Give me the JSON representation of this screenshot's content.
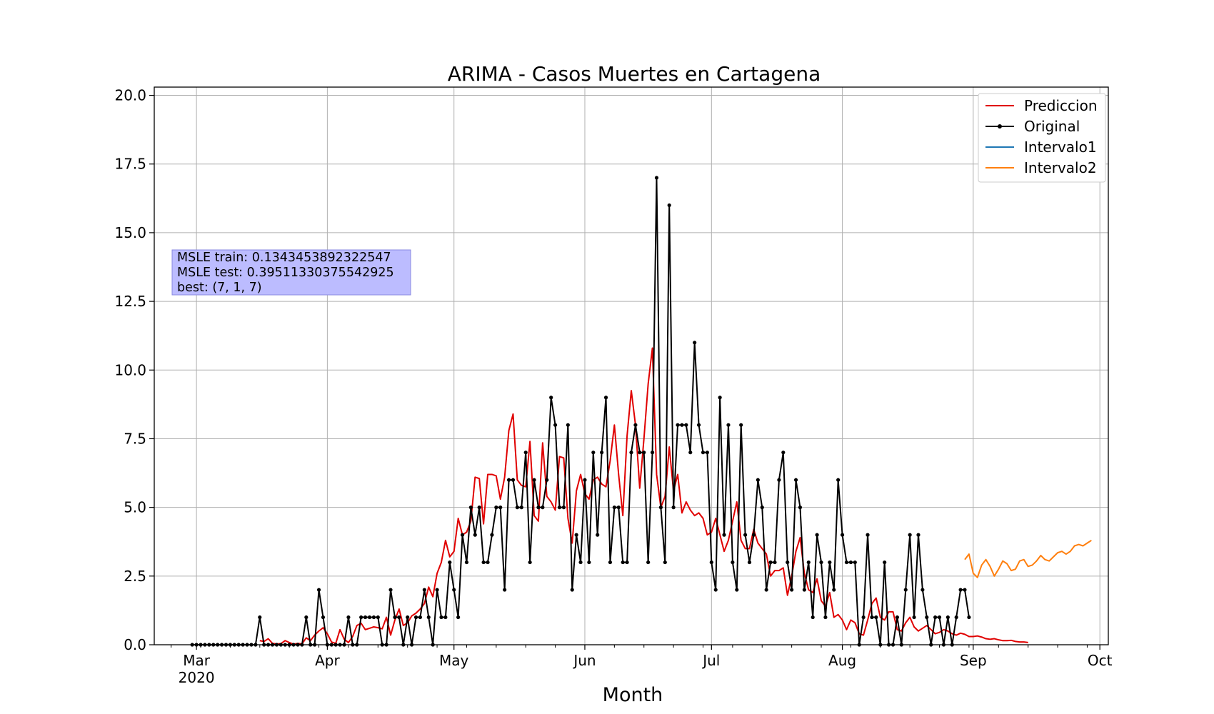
{
  "chart_data": {
    "type": "line",
    "title": "ARIMA - Casos Muertes en Cartagena",
    "xlabel": "Month",
    "ylabel": "",
    "x_start_date": "2020-02-29",
    "xlim": [
      "2020-02-20",
      "2020-10-03"
    ],
    "ylim": [
      0,
      20.3
    ],
    "yticks": [
      "0.0",
      "2.5",
      "5.0",
      "7.5",
      "10.0",
      "12.5",
      "15.0",
      "17.5",
      "20.0"
    ],
    "xticks": [
      {
        "date": "2020-03-01",
        "label": "Mar",
        "sublabel": "2020"
      },
      {
        "date": "2020-04-01",
        "label": "Apr",
        "sublabel": ""
      },
      {
        "date": "2020-05-01",
        "label": "May",
        "sublabel": ""
      },
      {
        "date": "2020-06-01",
        "label": "Jun",
        "sublabel": ""
      },
      {
        "date": "2020-07-01",
        "label": "Jul",
        "sublabel": ""
      },
      {
        "date": "2020-08-01",
        "label": "Aug",
        "sublabel": ""
      },
      {
        "date": "2020-09-01",
        "label": "Sep",
        "sublabel": ""
      },
      {
        "date": "2020-10-01",
        "label": "Oct",
        "sublabel": ""
      }
    ],
    "grid": true,
    "legend_position": "top-right",
    "annotation": {
      "lines": [
        "MSLE train: 0.1343453892322547",
        "MSLE test: 0.39511330375542925",
        "best: (7, 1, 7)"
      ],
      "background": "#bcbcff",
      "border": "#8a8ae0"
    },
    "series": [
      {
        "name": "Prediccion",
        "color": "#e00000",
        "marker": false,
        "start_date": "2020-03-16",
        "values": [
          0.15,
          0.12,
          0.22,
          0.05,
          0.03,
          0.04,
          0.15,
          0.08,
          0.02,
          0.05,
          0.03,
          0.25,
          0.15,
          0.35,
          0.5,
          0.62,
          0.4,
          0.1,
          0.05,
          0.55,
          0.2,
          0.08,
          0.3,
          0.7,
          0.78,
          0.55,
          0.6,
          0.65,
          0.62,
          0.58,
          1.0,
          0.35,
          0.9,
          1.3,
          0.7,
          0.8,
          1.05,
          1.15,
          1.3,
          1.5,
          2.1,
          1.75,
          2.6,
          3.0,
          3.8,
          3.2,
          3.4,
          4.6,
          4.0,
          4.1,
          4.5,
          6.1,
          6.05,
          4.4,
          6.2,
          6.2,
          6.15,
          5.3,
          6.1,
          7.8,
          8.4,
          6.0,
          5.8,
          5.75,
          7.4,
          4.7,
          4.5,
          7.35,
          5.4,
          5.2,
          4.9,
          6.85,
          6.8,
          4.6,
          3.7,
          5.6,
          6.2,
          5.5,
          5.3,
          6.0,
          6.1,
          5.85,
          5.75,
          6.7,
          8.0,
          6.2,
          4.7,
          7.6,
          9.25,
          8.0,
          5.7,
          7.5,
          9.5,
          10.8,
          6.2,
          5.0,
          5.4,
          7.2,
          5.6,
          6.2,
          4.8,
          5.2,
          4.9,
          4.7,
          4.8,
          4.6,
          4.0,
          4.1,
          4.6,
          4.0,
          3.4,
          3.8,
          4.5,
          5.2,
          3.8,
          3.5,
          3.5,
          4.2,
          3.7,
          3.5,
          3.3,
          2.5,
          2.7,
          2.7,
          2.8,
          1.8,
          2.5,
          3.4,
          3.9,
          2.6,
          2.0,
          1.9,
          2.4,
          1.6,
          1.4,
          1.9,
          1.0,
          1.1,
          0.9,
          0.55,
          0.9,
          0.8,
          0.4,
          0.35,
          0.9,
          1.5,
          1.7,
          1.0,
          0.9,
          1.2,
          1.2,
          0.55,
          0.5,
          0.8,
          1.0,
          0.65,
          0.5,
          0.6,
          0.7,
          0.55,
          0.4,
          0.45,
          0.55,
          0.5,
          0.4,
          0.35,
          0.42,
          0.38,
          0.3,
          0.3,
          0.32,
          0.28,
          0.22,
          0.2,
          0.22,
          0.18,
          0.15,
          0.15,
          0.16,
          0.12,
          0.1,
          0.1,
          0.08
        ]
      },
      {
        "name": "Original",
        "color": "#000000",
        "marker": true,
        "start_date": "2020-02-29",
        "values": [
          0,
          0,
          0,
          0,
          0,
          0,
          0,
          0,
          0,
          0,
          0,
          0,
          0,
          0,
          0,
          0,
          1,
          0,
          0,
          0,
          0,
          0,
          0,
          0,
          0,
          0,
          0,
          1,
          0,
          0,
          2,
          1,
          0,
          0,
          0,
          0,
          0,
          1,
          0,
          0,
          1,
          1,
          1,
          1,
          1,
          0,
          0,
          2,
          1,
          1,
          0,
          1,
          0,
          1,
          1,
          2,
          1,
          0,
          2,
          1,
          1,
          3,
          2,
          1,
          4,
          3,
          5,
          4,
          5,
          3,
          3,
          4,
          5,
          5,
          2,
          6,
          6,
          5,
          5,
          7,
          3,
          6,
          5,
          5,
          6,
          9,
          8,
          5,
          5,
          8,
          2,
          4,
          3,
          6,
          3,
          7,
          4,
          7,
          9,
          3,
          5,
          5,
          3,
          3,
          7,
          8,
          7,
          7,
          3,
          7,
          17,
          5,
          3,
          16,
          5,
          8,
          8,
          8,
          7,
          11,
          8,
          7,
          7,
          3,
          2,
          9,
          4,
          8,
          3,
          2,
          8,
          4,
          3,
          4,
          6,
          5,
          2,
          3,
          3,
          6,
          7,
          3,
          2,
          6,
          5,
          2,
          3,
          1,
          4,
          3,
          1,
          3,
          2,
          6,
          4,
          3,
          3,
          3,
          0,
          1,
          4,
          1,
          1,
          0,
          3,
          0,
          0,
          1,
          0,
          2,
          4,
          1,
          4,
          2,
          1,
          0,
          1,
          1,
          0,
          1,
          0,
          1,
          2,
          2,
          1
        ]
      },
      {
        "name": "Intervalo1",
        "color": "#1f77b4",
        "marker": false,
        "start_date": "2020-08-30",
        "values": []
      },
      {
        "name": "Intervalo2",
        "color": "#ff7f0e",
        "marker": false,
        "start_date": "2020-08-30",
        "values": [
          3.1,
          3.3,
          2.6,
          2.45,
          2.9,
          3.1,
          2.85,
          2.5,
          2.75,
          3.05,
          2.95,
          2.7,
          2.75,
          3.05,
          3.1,
          2.85,
          2.9,
          3.05,
          3.25,
          3.1,
          3.05,
          3.2,
          3.35,
          3.4,
          3.3,
          3.4,
          3.6,
          3.65,
          3.6,
          3.7,
          3.8
        ]
      }
    ]
  }
}
